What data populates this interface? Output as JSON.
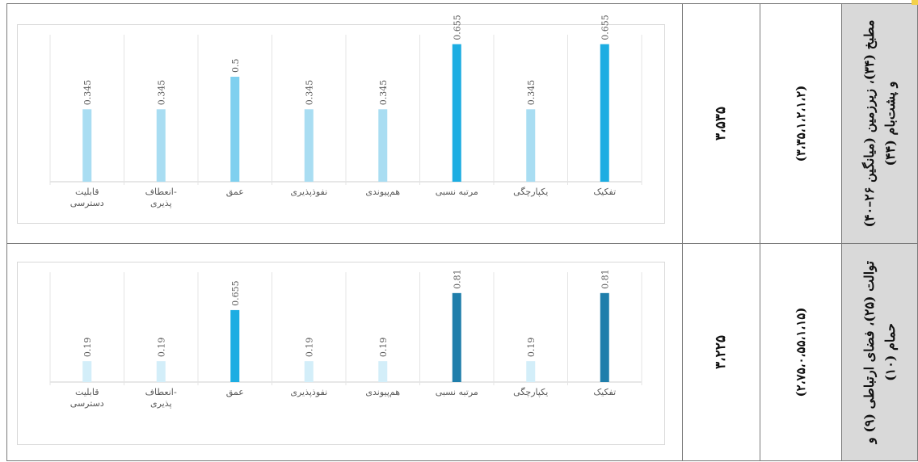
{
  "rows": [
    {
      "label": "مطبخ (۳۴)، زیرزمین (میانگین ۲۶–۴۰) و پشت‌بام (۴۴)",
      "weights": "(۳،۳۵،۱،۲،۱،۲)",
      "score": "۳،۵۳۵"
    },
    {
      "label": "توالت (۲۵)، فضای ارتباطی (۹) و حمام (۱۰)",
      "weights": "(۲،۷۵،۰،۵۵،۱،۱۵)",
      "score": "۳،۲۲۵"
    }
  ],
  "colors": {
    "light": "#a9ddf2",
    "mid": "#7fd0ef",
    "strong": "#1cade2",
    "dark": "#1f7eab",
    "palest": "#d3eef9"
  },
  "chart_data": [
    {
      "type": "bar",
      "categories": [
        "تفکیک",
        "یکپارچگی",
        "مرتبه نسبی",
        "هم‌پیوندی",
        "نفوذپذیری",
        "عمق",
        "انعطاف‌پذیری",
        "قابلیت دسترسی"
      ],
      "values": [
        0.655,
        0.345,
        0.655,
        0.345,
        0.345,
        0.5,
        0.345,
        0.345
      ],
      "value_labels": [
        "0.655",
        "0.345",
        "0.655",
        "0.345",
        "0.345",
        "0.5",
        "0.345",
        "0.345"
      ],
      "bar_colors": [
        "#1cade2",
        "#a9ddf2",
        "#1cade2",
        "#a9ddf2",
        "#a9ddf2",
        "#7fd0ef",
        "#a9ddf2",
        "#a9ddf2"
      ],
      "ylim": [
        0,
        0.7
      ],
      "grid": true
    },
    {
      "type": "bar",
      "categories": [
        "تفکیک",
        "یکپارچگی",
        "مرتبه نسبی",
        "هم‌پیوندی",
        "نفوذپذیری",
        "عمق",
        "انعطاف‌پذیری",
        "قابلیت دسترسی"
      ],
      "values": [
        0.81,
        0.19,
        0.81,
        0.19,
        0.19,
        0.655,
        0.19,
        0.19
      ],
      "value_labels": [
        "0.81",
        "0.19",
        "0.81",
        "0.19",
        "0.19",
        "0.655",
        "0.19",
        "0.19"
      ],
      "bar_colors": [
        "#1f7eab",
        "#d3eef9",
        "#1f7eab",
        "#d3eef9",
        "#d3eef9",
        "#1cade2",
        "#d3eef9",
        "#d3eef9"
      ],
      "ylim": [
        0,
        1.0
      ],
      "grid": true
    }
  ]
}
